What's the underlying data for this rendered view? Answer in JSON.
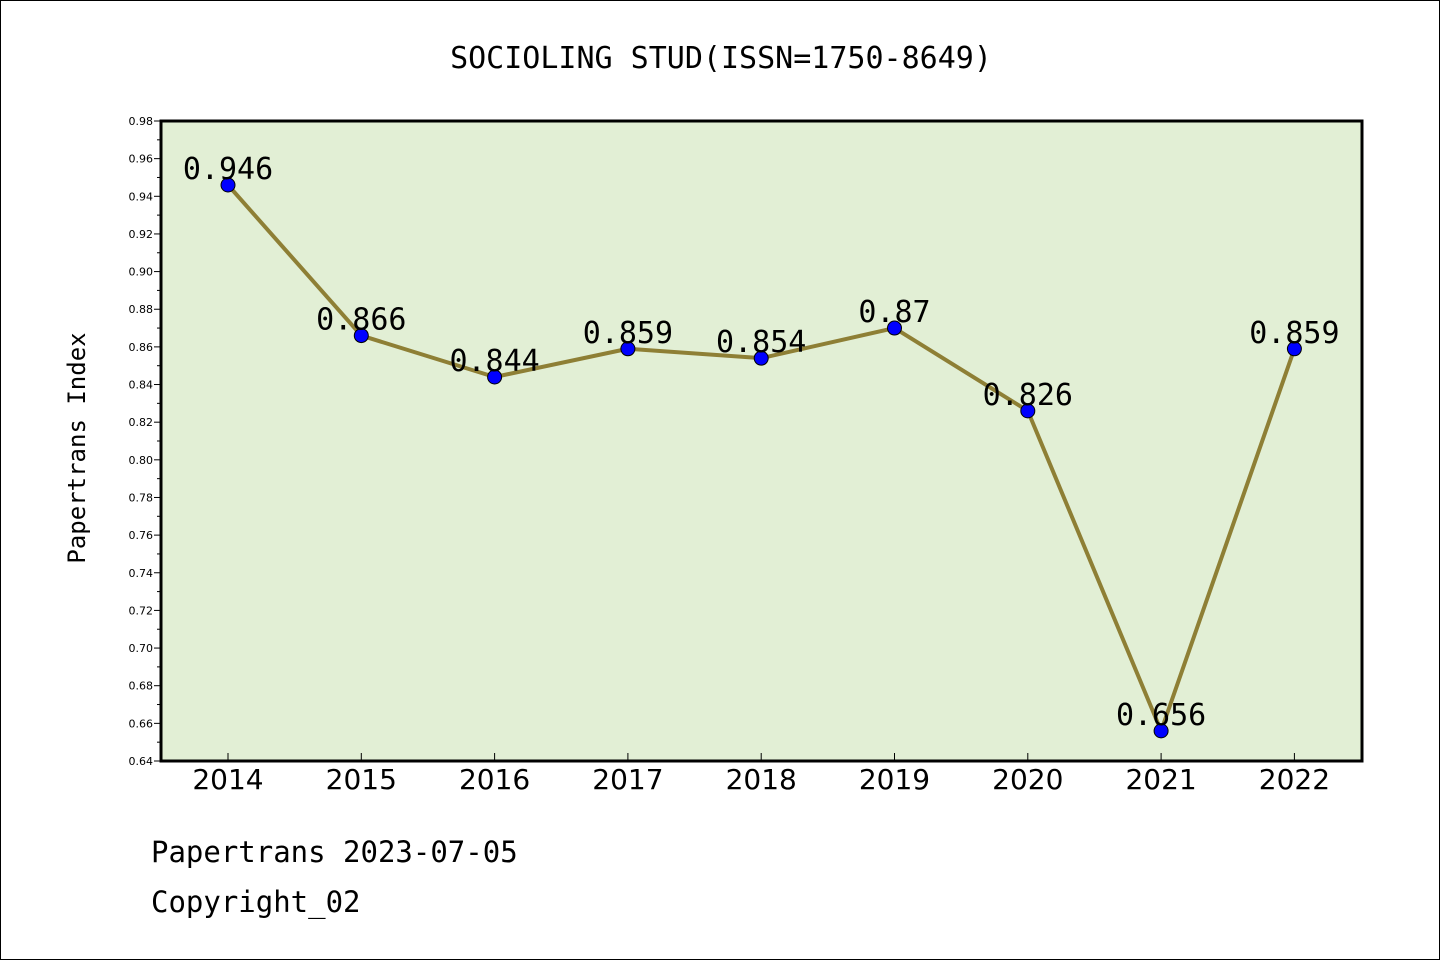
{
  "chart_data": {
    "type": "line",
    "title": "SOCIOLING STUD(ISSN=1750-8649)",
    "xlabel": "",
    "ylabel": "Papertrans Index",
    "categories": [
      "2014",
      "2015",
      "2016",
      "2017",
      "2018",
      "2019",
      "2020",
      "2021",
      "2022"
    ],
    "series": [
      {
        "values": [
          0.946,
          0.866,
          0.844,
          0.859,
          0.854,
          0.87,
          0.826,
          0.656,
          0.859
        ],
        "labels": [
          "0.946",
          "0.866",
          "0.844",
          "0.859",
          "0.854",
          "0.87",
          "0.826",
          "0.656",
          "0.859"
        ]
      }
    ],
    "ylim": [
      0.64,
      0.98
    ],
    "yticks": [
      "0.64",
      "0.66",
      "0.68",
      "0.70",
      "0.72",
      "0.74",
      "0.76",
      "0.78",
      "0.80",
      "0.82",
      "0.84",
      "0.86",
      "0.88",
      "0.90",
      "0.92",
      "0.94",
      "0.96",
      "0.98"
    ],
    "grid": false,
    "legend": "none",
    "colors": {
      "plot_background": "#e2efd5",
      "line": "#8e7f35",
      "marker": "#0000ff"
    }
  },
  "footer": {
    "line1": "Papertrans 2023-07-05",
    "line2": "Copyright_02"
  }
}
